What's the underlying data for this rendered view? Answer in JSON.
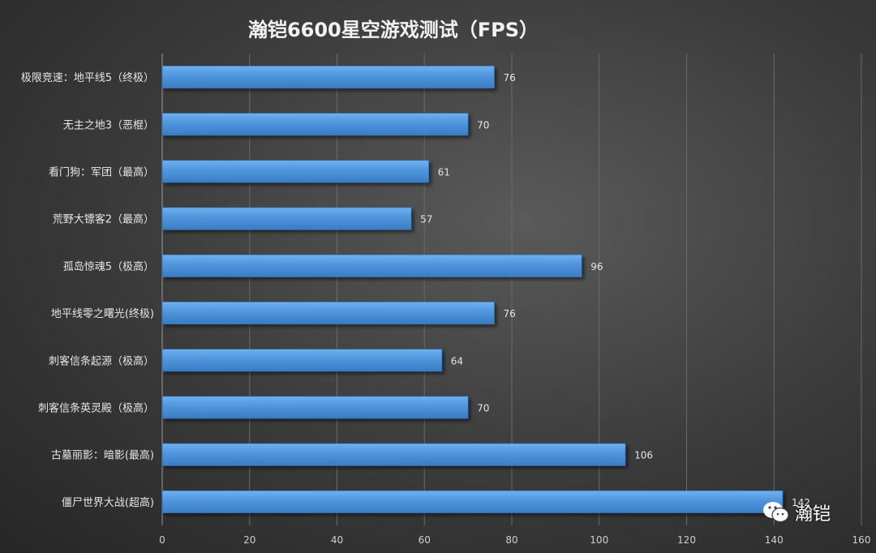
{
  "chart_data": {
    "type": "bar",
    "orientation": "horizontal",
    "title": "瀚铠6600星空游戏测试（FPS）",
    "categories": [
      "极限竞速：地平线5（终极）",
      "无主之地3（恶棍）",
      "看门狗：军团（最高）",
      "荒野大镖客2（最高）",
      "孤岛惊魂5（极高）",
      "地平线零之曙光(终极)",
      "刺客信条起源（极高）",
      "刺客信条英灵殿（极高）",
      "古墓丽影：暗影(最高)",
      "僵尸世界大战(超高)"
    ],
    "values": [
      76,
      70,
      61,
      57,
      96,
      76,
      64,
      70,
      106,
      142
    ],
    "xlim": [
      0,
      160
    ],
    "xticks": [
      0,
      20,
      40,
      60,
      80,
      100,
      120,
      140,
      160
    ],
    "grid": true,
    "legend": "none",
    "bar_color": "#4f95dd",
    "background_color": "#3c3c3c"
  },
  "watermark": {
    "text": "瀚铠",
    "icon": "wechat-icon"
  }
}
